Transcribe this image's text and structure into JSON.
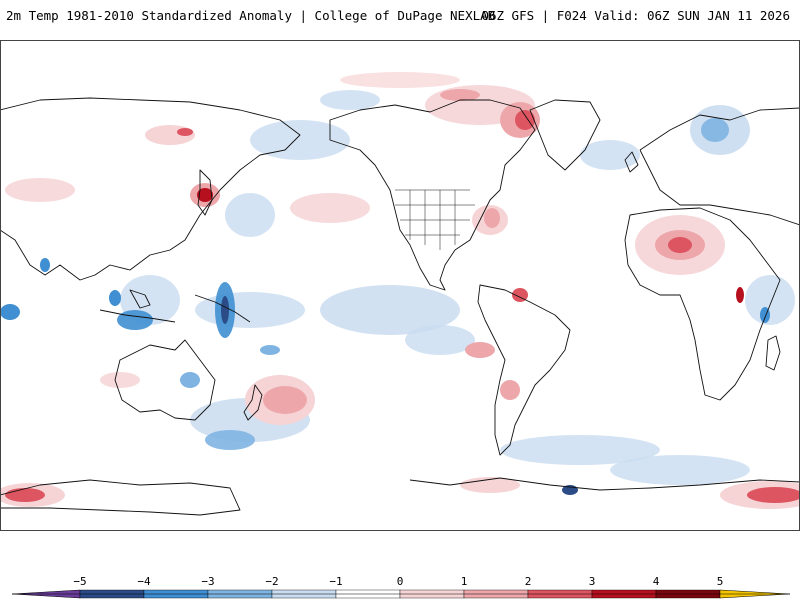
{
  "header": {
    "title_left": "2m Temp 1981-2010 Standardized Anomaly | College of DuPage NEXLAB",
    "title_right": "06Z GFS | F024 Valid: 06Z SUN JAN 11 2026"
  },
  "map": {
    "projection": "equirectangular, Pacific-centered",
    "colors": {
      "neg5": "#6a3d9a",
      "neg4": "#2b4c86",
      "neg3": "#3f8fd2",
      "neg2": "#7fb4e2",
      "neg1": "#c9dcf0",
      "zero": "#ffffff",
      "pos1": "#f6d4d6",
      "pos2": "#eda7ab",
      "pos3": "#dc5560",
      "pos4": "#b6101f",
      "pos5": "#7a0710",
      "over": "#f3c400",
      "coast": "#111111"
    }
  },
  "colorbar": {
    "ticks": [
      "−5",
      "−4",
      "−3",
      "−2",
      "−1",
      "0",
      "1",
      "2",
      "3",
      "4",
      "5"
    ]
  }
}
